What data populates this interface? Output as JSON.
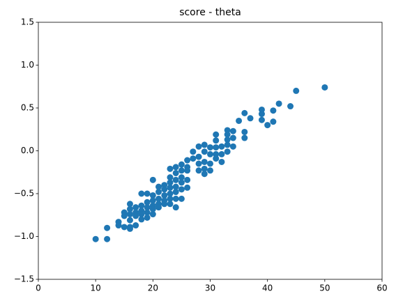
{
  "chart_data": {
    "type": "scatter",
    "title": "score - theta",
    "color": "#1f77b4",
    "x": [
      10,
      12,
      12,
      14,
      14,
      15,
      15,
      15,
      16,
      16,
      16,
      16,
      16,
      16,
      17,
      17,
      17,
      17,
      18,
      18,
      18,
      18,
      18,
      19,
      19,
      19,
      19,
      19,
      20,
      20,
      20,
      20,
      20,
      20,
      21,
      21,
      21,
      21,
      21,
      22,
      22,
      22,
      22,
      22,
      23,
      23,
      23,
      23,
      23,
      23,
      23,
      24,
      24,
      24,
      24,
      24,
      24,
      24,
      25,
      25,
      25,
      25,
      25,
      25,
      26,
      26,
      26,
      26,
      26,
      27,
      27,
      28,
      28,
      28,
      28,
      29,
      29,
      29,
      29,
      29,
      30,
      30,
      30,
      30,
      31,
      31,
      31,
      31,
      31,
      32,
      32,
      32,
      33,
      33,
      33,
      33,
      33,
      34,
      34,
      34,
      35,
      36,
      36,
      36,
      37,
      39,
      39,
      39,
      40,
      41,
      41,
      42,
      44,
      45,
      50
    ],
    "values": [
      -1.03,
      -0.9,
      -1.03,
      -0.83,
      -0.87,
      -0.72,
      -0.76,
      -0.89,
      -0.62,
      -0.68,
      -0.74,
      -0.81,
      -0.89,
      -0.91,
      -0.87,
      -0.72,
      -0.66,
      -0.76,
      -0.5,
      -0.64,
      -0.7,
      -0.74,
      -0.8,
      -0.5,
      -0.6,
      -0.66,
      -0.72,
      -0.78,
      -0.34,
      -0.52,
      -0.58,
      -0.64,
      -0.68,
      -0.74,
      -0.42,
      -0.48,
      -0.56,
      -0.62,
      -0.66,
      -0.4,
      -0.45,
      -0.52,
      -0.58,
      -0.62,
      -0.21,
      -0.31,
      -0.37,
      -0.43,
      -0.5,
      -0.56,
      -0.62,
      -0.19,
      -0.26,
      -0.34,
      -0.42,
      -0.48,
      -0.56,
      -0.66,
      -0.16,
      -0.23,
      -0.31,
      -0.37,
      -0.45,
      -0.56,
      -0.11,
      -0.19,
      -0.23,
      -0.34,
      -0.43,
      -0.01,
      -0.09,
      0.05,
      -0.07,
      -0.15,
      -0.23,
      0.07,
      -0.01,
      -0.13,
      -0.21,
      -0.27,
      0.04,
      -0.04,
      -0.15,
      -0.23,
      0.19,
      0.12,
      0.04,
      -0.04,
      -0.09,
      0.05,
      -0.04,
      -0.13,
      0.24,
      0.19,
      0.13,
      0.07,
      -0.01,
      0.23,
      0.15,
      0.05,
      0.35,
      0.44,
      0.22,
      0.15,
      0.38,
      0.48,
      0.43,
      0.36,
      0.3,
      0.47,
      0.34,
      0.55,
      0.52,
      0.7,
      0.74
    ],
    "xlim": [
      0,
      60
    ],
    "xticks": [
      0,
      10,
      20,
      30,
      40,
      50,
      60
    ],
    "ylim": [
      -1.5,
      1.5
    ],
    "yticks": [
      {
        "value": -1.5,
        "label": "−1.5"
      },
      {
        "value": -1,
        "label": "−1.0"
      },
      {
        "value": -0.5,
        "label": "−0.5"
      },
      {
        "value": 0,
        "label": "0.0"
      },
      {
        "value": 0.5,
        "label": "0.5"
      },
      {
        "value": 1,
        "label": "1.0"
      },
      {
        "value": 1.5,
        "label": "1.5"
      }
    ]
  }
}
